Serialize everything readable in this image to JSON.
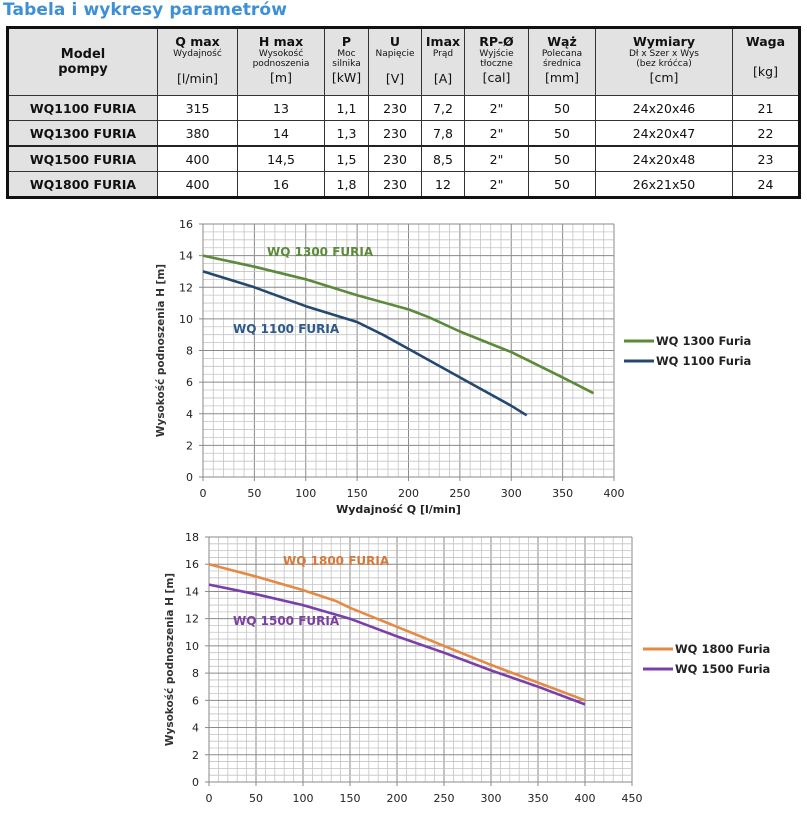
{
  "page": {
    "title": "Tabela i wykresy parametrów"
  },
  "table": {
    "columns": [
      {
        "main": "Model pompy",
        "sub": "",
        "unit": ""
      },
      {
        "main": "Q max",
        "sub": "Wydajność",
        "unit": "[l/min]"
      },
      {
        "main": "H max",
        "sub": "Wysokość podnoszenia",
        "unit": "[m]"
      },
      {
        "main": "P",
        "sub": "Moc silnika",
        "unit": "[kW]"
      },
      {
        "main": "U",
        "sub": "Napięcie",
        "unit": "[V]"
      },
      {
        "main": "Imax",
        "sub": "Prąd",
        "unit": "[A]"
      },
      {
        "main": "RP-Ø",
        "sub": "Wyjście tłoczne",
        "unit": "[cal]"
      },
      {
        "main": "Wąż",
        "sub": "Polecana średnica",
        "unit": "[mm]"
      },
      {
        "main": "Wymiary",
        "sub": "Dł x Szer x Wys (bez króćca)",
        "unit": "[cm]"
      },
      {
        "main": "Waga",
        "sub": "",
        "unit": "[kg]"
      }
    ],
    "header_model_line1": "Model",
    "header_model_line2": "pompy",
    "sub_lines": {
      "h_max_1": "Wysokość",
      "h_max_2": "podnoszenia",
      "p_1": "Moc",
      "p_2": "silnika",
      "rp_1": "Wyjście",
      "rp_2": "tłoczne",
      "waz_1": "Polecana",
      "waz_2": "średnica",
      "wym_1": "Dł x Szer x Wys",
      "wym_2": "(bez króćca)"
    },
    "rows": [
      [
        "WQ1100 FURIA",
        "315",
        "13",
        "1,1",
        "230",
        "7,2",
        "2\"",
        "50",
        "24x20x46",
        "21"
      ],
      [
        "WQ1300 FURIA",
        "380",
        "14",
        "1,3",
        "230",
        "7,8",
        "2\"",
        "50",
        "24x20x47",
        "22"
      ],
      [
        "WQ1500 FURIA",
        "400",
        "14,5",
        "1,5",
        "230",
        "8,5",
        "2\"",
        "50",
        "24x20x48",
        "23"
      ],
      [
        "WQ1800 FURIA",
        "400",
        "16",
        "1,8",
        "230",
        "12",
        "2\"",
        "50",
        "26x21x50",
        "24"
      ]
    ]
  },
  "chart_data": [
    {
      "type": "line",
      "title": "",
      "xlabel": "Wydajność Q [l/min]",
      "ylabel": "Wysokość podnoszenia H [m]",
      "xlim": [
        0,
        400
      ],
      "ylim": [
        0,
        16
      ],
      "xticks": [
        0,
        50,
        100,
        150,
        200,
        250,
        300,
        350,
        400
      ],
      "yticks": [
        0,
        2,
        4,
        6,
        8,
        10,
        12,
        14,
        16
      ],
      "grid": true,
      "legend_position": "right",
      "annotations": [
        {
          "text": "WQ 1300 FURIA",
          "color": "#5a8a3a"
        },
        {
          "text": "WQ 1100 FURIA",
          "color": "#2e5a8a"
        }
      ],
      "series": [
        {
          "name": "WQ 1300 Furia",
          "color": "#5a8a3a",
          "x": [
            0,
            50,
            100,
            150,
            200,
            220,
            250,
            300,
            350,
            380
          ],
          "y": [
            14,
            13.3,
            12.5,
            11.5,
            10.6,
            10.1,
            9.2,
            7.9,
            6.3,
            5.3
          ]
        },
        {
          "name": "WQ 1100 Furia",
          "color": "#24486e",
          "x": [
            0,
            50,
            100,
            150,
            175,
            200,
            250,
            300,
            315
          ],
          "y": [
            13,
            12,
            10.8,
            9.8,
            9.0,
            8.1,
            6.3,
            4.5,
            3.9
          ]
        }
      ]
    },
    {
      "type": "line",
      "title": "",
      "xlabel": "",
      "ylabel": "Wysokość podnoszenia H [m]",
      "xlim": [
        0,
        450
      ],
      "ylim": [
        0,
        18
      ],
      "xticks": [
        0,
        50,
        100,
        150,
        200,
        250,
        300,
        350,
        400,
        450
      ],
      "yticks": [
        0,
        2,
        4,
        6,
        8,
        10,
        12,
        14,
        16,
        18
      ],
      "grid": true,
      "legend_position": "right",
      "annotations": [
        {
          "text": "WQ 1800 FURIA",
          "color": "#d6783a"
        },
        {
          "text": "WQ 1500 FURIA",
          "color": "#7a3fa0"
        }
      ],
      "series": [
        {
          "name": "WQ 1800 Furia",
          "color": "#e58a45",
          "x": [
            0,
            50,
            100,
            135,
            150,
            200,
            250,
            300,
            350,
            400
          ],
          "y": [
            16,
            15.1,
            14.1,
            13.3,
            12.8,
            11.4,
            10.0,
            8.6,
            7.3,
            6.0
          ]
        },
        {
          "name": "WQ 1500 Furia",
          "color": "#7a3fa8",
          "x": [
            0,
            50,
            100,
            150,
            200,
            250,
            300,
            350,
            400
          ],
          "y": [
            14.5,
            13.8,
            13.0,
            12.0,
            10.7,
            9.5,
            8.2,
            7.0,
            5.7
          ]
        }
      ]
    }
  ]
}
